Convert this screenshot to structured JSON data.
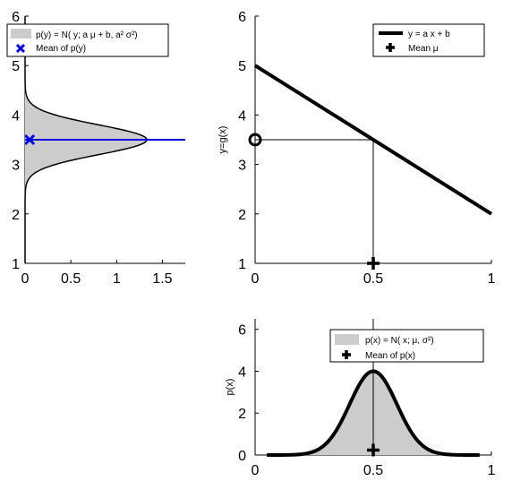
{
  "chart_data": [
    {
      "id": "py",
      "type": "area",
      "description": "",
      "xlim": [
        0,
        1.75
      ],
      "ylim": [
        1,
        6
      ],
      "xticks": [
        0,
        0.5,
        1,
        1.5
      ],
      "xtick_labels": [
        "0",
        "0.5",
        "1",
        "1.5"
      ],
      "yticks": [
        1,
        2,
        3,
        4,
        5,
        6
      ],
      "ytick_labels": [
        "1",
        "2",
        "3",
        "4",
        "5",
        "6"
      ],
      "xlabel": "",
      "ylabel": "",
      "grid": false,
      "legend_position": "top",
      "legend": [
        {
          "label": "p(y) = N( y; a μ + b, a² σ²)",
          "marker": "gray-patch"
        },
        {
          "label": "Mean of p(y)",
          "marker": "blue-x"
        }
      ],
      "density": {
        "mean": 3.5,
        "sd": 0.3,
        "peak": 1.33
      },
      "mean_point": {
        "x": 0.05,
        "y": 3.5
      },
      "mean_line_y": 3.5,
      "colors": {
        "fill": "#cccccc",
        "mean": "#0000dd",
        "curve": "#000000"
      }
    },
    {
      "id": "mapping",
      "type": "line",
      "xlim": [
        0,
        1
      ],
      "ylim": [
        1,
        6
      ],
      "xticks": [
        0,
        0.5,
        1
      ],
      "xtick_labels": [
        "0",
        "0.5",
        "1"
      ],
      "yticks": [
        1,
        2,
        3,
        4,
        5,
        6
      ],
      "ytick_labels": [
        "1",
        "2",
        "3",
        "4",
        "5",
        "6"
      ],
      "xlabel": "",
      "ylabel": "y=g(x)",
      "grid": false,
      "legend_position": "top-right",
      "legend": [
        {
          "label": "y = a x + b",
          "marker": "black-line"
        },
        {
          "label": "Mean μ",
          "marker": "black-plus"
        }
      ],
      "line": {
        "x": [
          0,
          1
        ],
        "y": [
          5,
          2
        ]
      },
      "mean_x": 0.5,
      "mapped_y": 3.5,
      "circle_point": {
        "x": 0,
        "y": 3.5
      },
      "plus_point": {
        "x": 0.5,
        "y": 1
      }
    },
    {
      "id": "px",
      "type": "area",
      "xlim": [
        0,
        1
      ],
      "ylim": [
        0,
        6.5
      ],
      "xticks": [
        0,
        0.5,
        1
      ],
      "xtick_labels": [
        "0",
        "0.5",
        "1"
      ],
      "yticks": [
        0,
        2,
        4,
        6
      ],
      "ytick_labels": [
        "0",
        "2",
        "4",
        "6"
      ],
      "xlabel": "",
      "ylabel": "p(x)",
      "grid": false,
      "legend_position": "top-right",
      "legend": [
        {
          "label": "p(x) = N( x; μ, σ²)",
          "marker": "gray-patch"
        },
        {
          "label": "Mean of p(x)",
          "marker": "black-plus"
        }
      ],
      "density": {
        "mean": 0.5,
        "sd": 0.1,
        "peak": 4.0
      },
      "curve_x_range": [
        0.05,
        0.95
      ],
      "mean_point": {
        "x": 0.5,
        "y": 0.15
      },
      "colors": {
        "fill": "#cccccc",
        "curve": "#000000"
      }
    }
  ]
}
